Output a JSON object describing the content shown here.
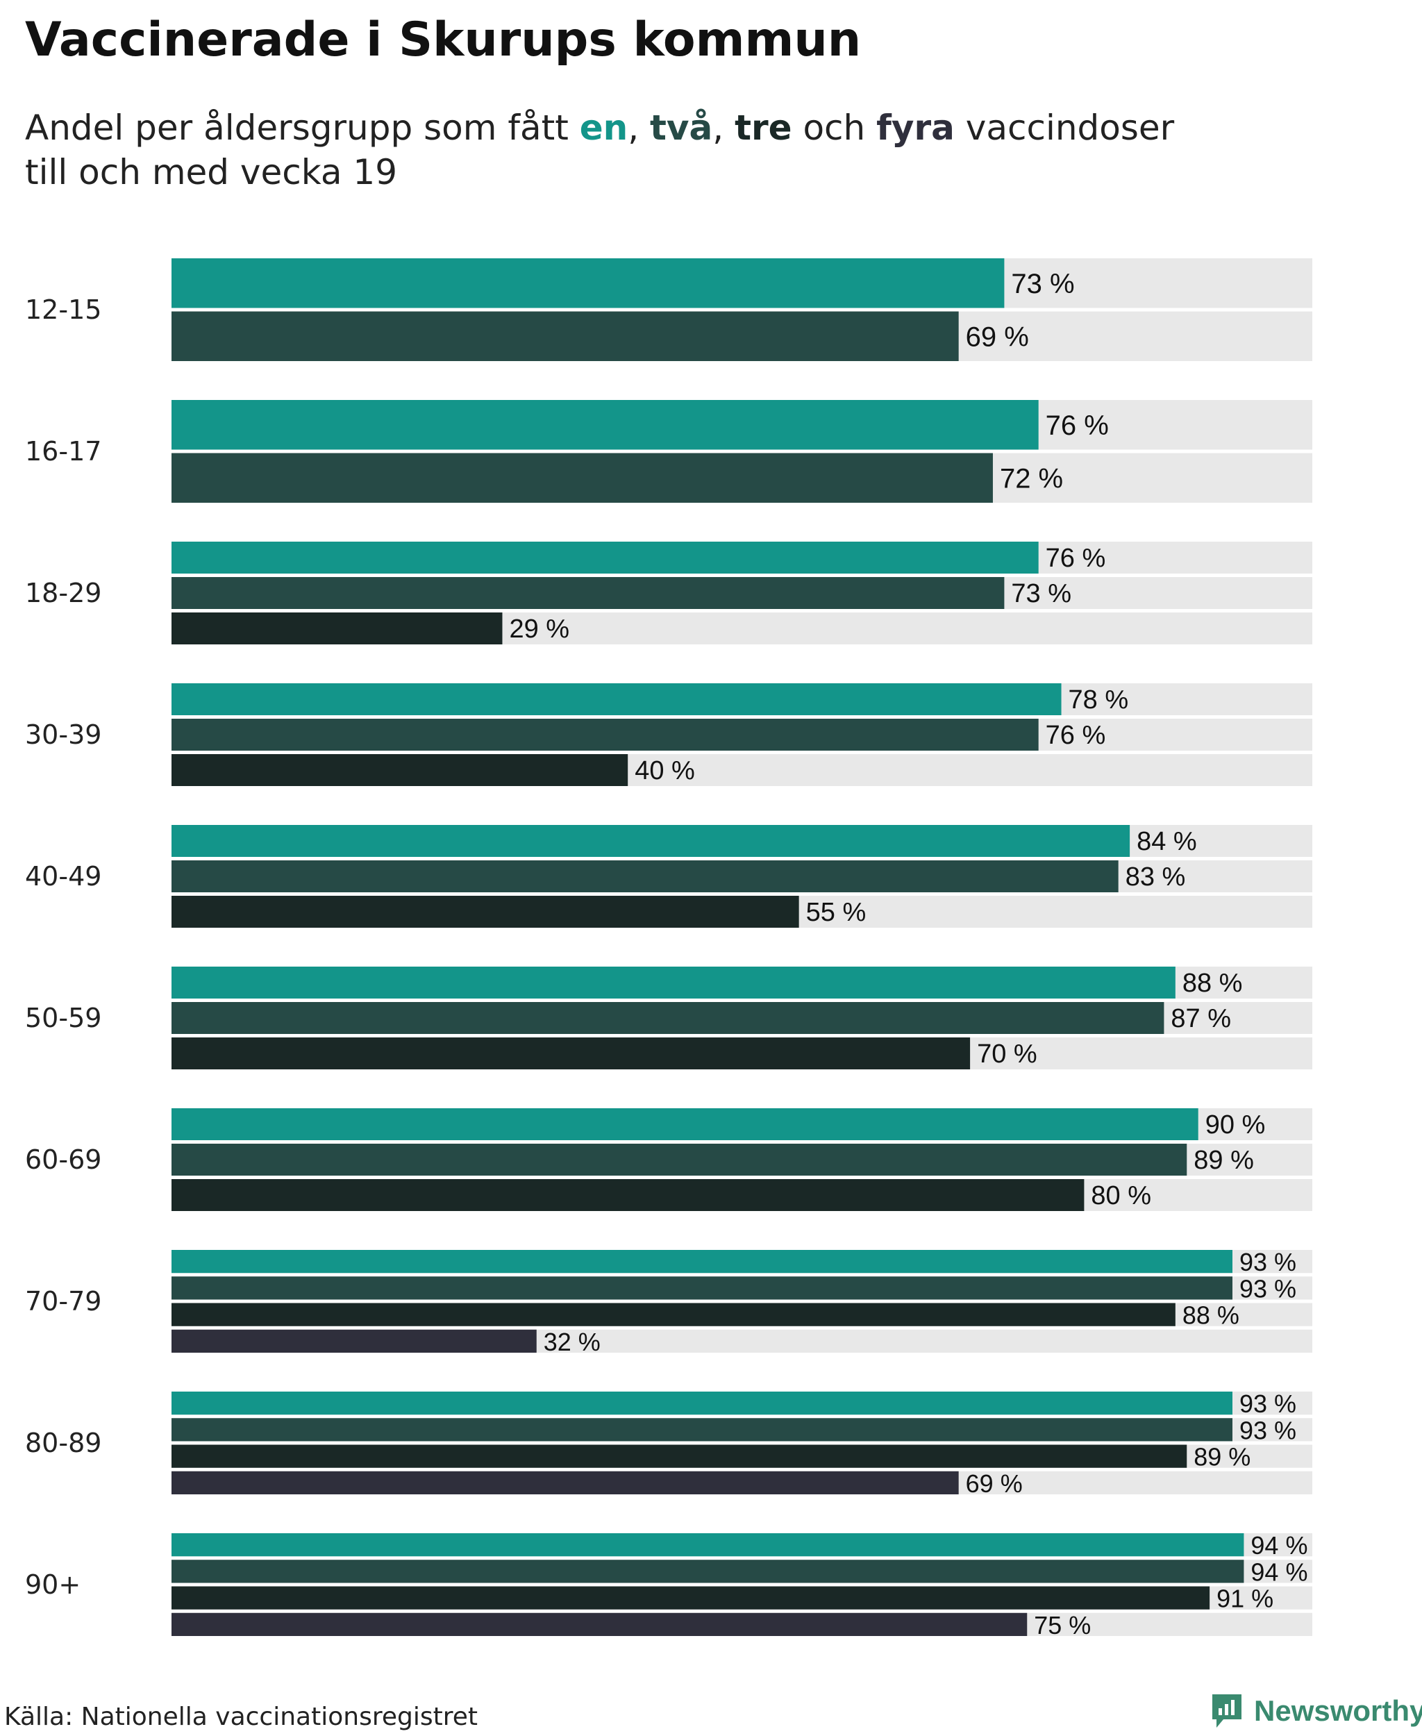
{
  "title": "Vaccinerade i Skurups kommun",
  "subtitle": {
    "prefix": "Andel per åldersgrupp som fått ",
    "w1": "en",
    "sep1": ", ",
    "w2": "två",
    "sep2": ", ",
    "w3": "tre",
    "sep3": " och ",
    "w4": "fyra",
    "suffix": " vaccindoser",
    "line2": "till och med vecka 19"
  },
  "colors": {
    "dose1": "#13958a",
    "dose2": "#264a46",
    "dose3": "#1a2826",
    "dose4": "#2f2f3c",
    "track": "#e8e8e8"
  },
  "chart_data": {
    "type": "bar",
    "orientation": "horizontal",
    "xlim": [
      0,
      100
    ],
    "unit": "%",
    "categories": [
      "12-15",
      "16-17",
      "18-29",
      "30-39",
      "40-49",
      "50-59",
      "60-69",
      "70-79",
      "80-89",
      "90+"
    ],
    "series": [
      {
        "name": "en",
        "values": [
          73,
          76,
          76,
          78,
          84,
          88,
          90,
          93,
          93,
          94
        ]
      },
      {
        "name": "två",
        "values": [
          69,
          72,
          73,
          76,
          83,
          87,
          89,
          93,
          93,
          94
        ]
      },
      {
        "name": "tre",
        "values": [
          null,
          null,
          29,
          40,
          55,
          70,
          80,
          88,
          89,
          91
        ]
      },
      {
        "name": "fyra",
        "values": [
          null,
          null,
          null,
          null,
          null,
          null,
          null,
          32,
          69,
          75
        ]
      }
    ],
    "grid": false,
    "legend": "inline in subtitle"
  },
  "source": "Källa: Nationella vaccinationsregistret",
  "brand": {
    "name": "Newsworthy",
    "icon": "newsworthy-logo-icon"
  }
}
